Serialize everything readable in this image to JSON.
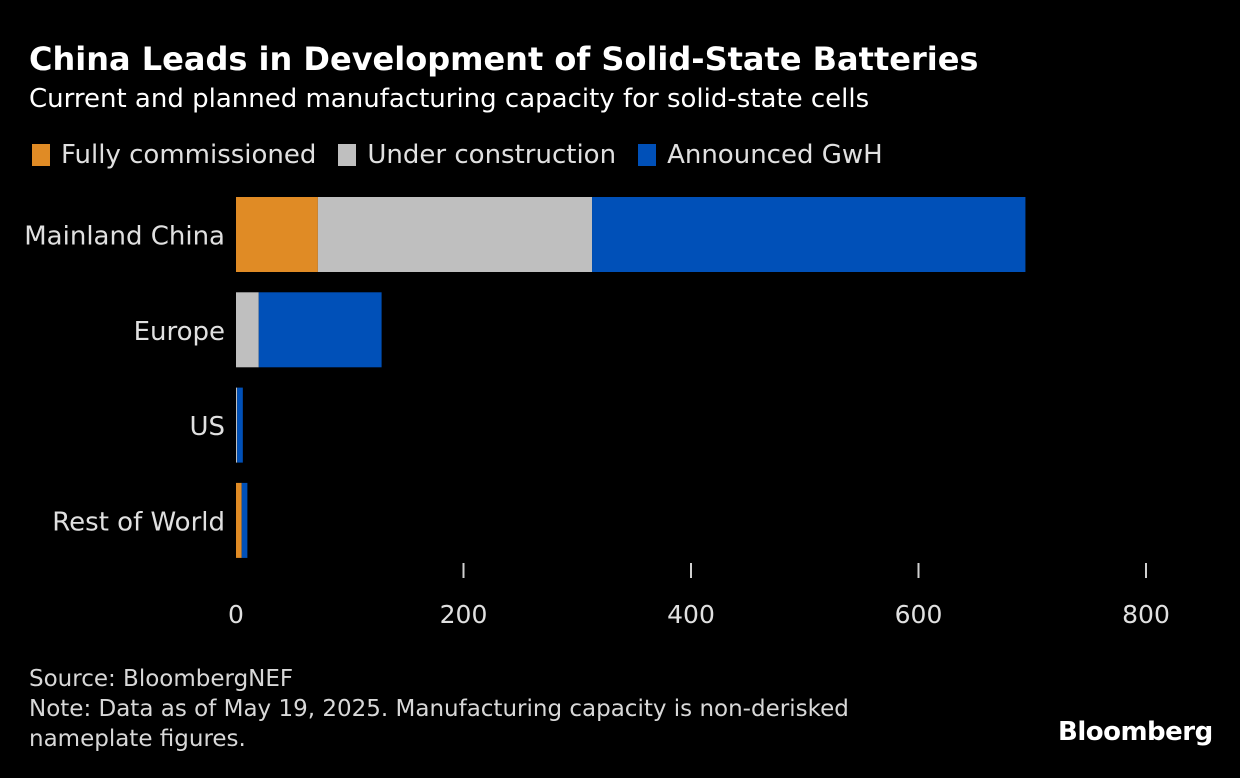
{
  "header": {
    "title": "China Leads in Development of Solid-State Batteries",
    "subtitle": "Current and planned manufacturing capacity for solid-state cells"
  },
  "legend": [
    {
      "label": "Fully commissioned",
      "color": "#e08b25"
    },
    {
      "label": "Under construction",
      "color": "#bfbfbf"
    },
    {
      "label": "Announced GwH",
      "color": "#0050b8"
    }
  ],
  "chart_data": {
    "type": "bar",
    "orientation": "horizontal",
    "stacked": true,
    "title": "China Leads in Development of Solid-State Batteries",
    "subtitle": "Current and planned manufacturing capacity for solid-state cells",
    "categories": [
      "Mainland China",
      "Europe",
      "US",
      "Rest of World"
    ],
    "series": [
      {
        "name": "Fully commissioned",
        "color": "#e08b25",
        "values": [
          72,
          0,
          0,
          5
        ]
      },
      {
        "name": "Under construction",
        "color": "#bfbfbf",
        "values": [
          241,
          20,
          1,
          0
        ]
      },
      {
        "name": "Announced GwH",
        "color": "#0050b8",
        "values": [
          381,
          108,
          5,
          5
        ]
      }
    ],
    "xlabel": "",
    "ylabel": "",
    "xlim": [
      0,
      800
    ],
    "xticks": [
      0,
      200,
      400,
      600,
      800
    ],
    "xtick_labels": [
      "0",
      "200",
      "400",
      "600",
      "800"
    ],
    "grid": false,
    "legend_position": "top-left"
  },
  "footer": {
    "source": "Source: BloombergNEF",
    "note_line1": "Note: Data as of May 19, 2025. Manufacturing capacity is non-derisked",
    "note_line2": "nameplate figures."
  },
  "brand": "Bloomberg"
}
